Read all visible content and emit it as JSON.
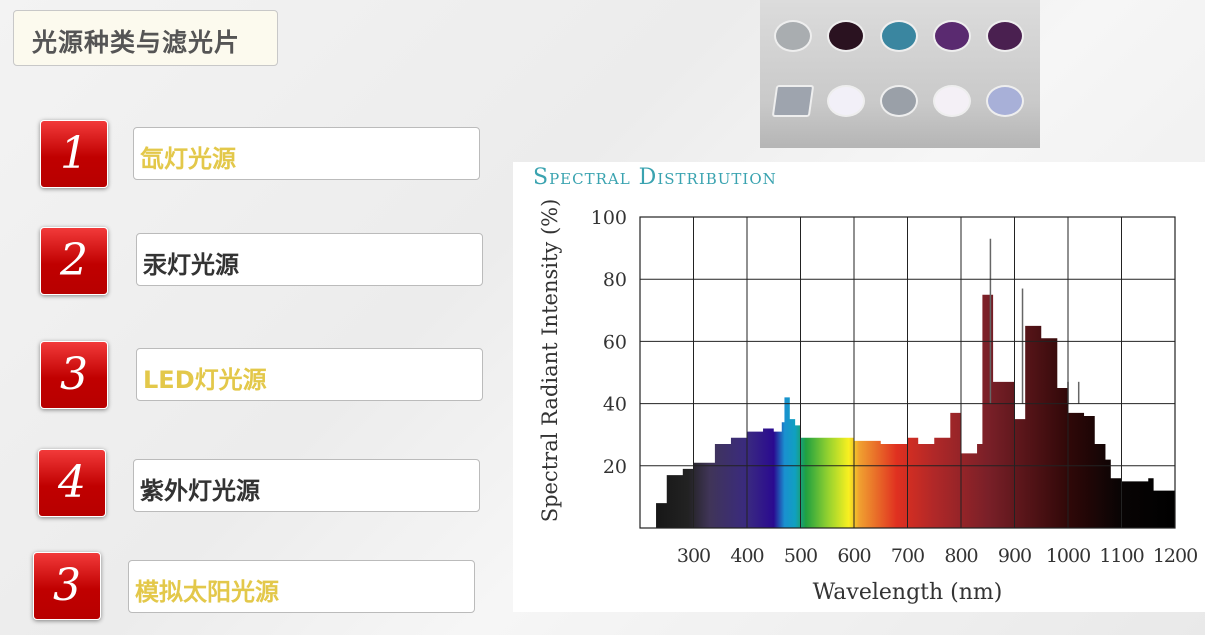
{
  "title": "光源种类与滤光片",
  "items": [
    {
      "num": "1",
      "label": "氙灯光源",
      "color": "yellow"
    },
    {
      "num": "2",
      "label": "汞灯光源",
      "color": "dark"
    },
    {
      "num": "3",
      "label": "LED灯光源",
      "color": "yellow"
    },
    {
      "num": "4",
      "label": "紫外灯光源",
      "color": "dark"
    },
    {
      "num": "3",
      "label": "模拟太阳光源",
      "color": "yellow"
    }
  ],
  "filter_colors": [
    "#a9adb0",
    "#2a1220",
    "#3a86a0",
    "#5a2a70",
    "#4a2050",
    "#9ea4ae",
    "#f2f0f8",
    "#9aa0a8",
    "#f4f0f6",
    "#a8b0d8"
  ],
  "chart_data": {
    "type": "area",
    "title": "Spectral Distribution",
    "xlabel": "Wavelength (nm)",
    "ylabel": "Spectral Radiant Intensity (%)",
    "xlim": [
      200,
      1200
    ],
    "ylim": [
      0,
      100
    ],
    "xticks": [
      300,
      400,
      500,
      600,
      700,
      800,
      900,
      1000,
      1100,
      1200
    ],
    "yticks": [
      20,
      40,
      60,
      80,
      100
    ],
    "grid": true,
    "x": [
      200,
      230,
      250,
      280,
      300,
      340,
      370,
      400,
      430,
      450,
      465,
      470,
      480,
      490,
      500,
      600,
      650,
      700,
      720,
      750,
      780,
      800,
      830,
      840,
      860,
      900,
      920,
      950,
      980,
      1000,
      1030,
      1050,
      1070,
      1080,
      1100,
      1150,
      1160,
      1200
    ],
    "y": [
      0,
      8,
      17,
      19,
      21,
      27,
      29,
      31,
      32,
      31,
      34,
      42,
      35,
      33,
      29,
      28,
      27,
      29,
      27,
      29,
      37,
      24,
      27,
      75,
      47,
      35,
      65,
      61,
      45,
      37,
      36,
      27,
      22,
      16,
      15,
      16,
      12,
      14
    ],
    "spikes": [
      {
        "x": 855,
        "y": 93
      },
      {
        "x": 915,
        "y": 77
      },
      {
        "x": 1000,
        "y": 47
      },
      {
        "x": 1020,
        "y": 47
      }
    ]
  }
}
